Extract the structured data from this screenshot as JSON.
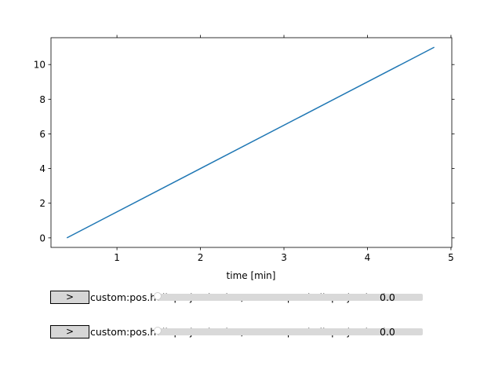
{
  "chart_data": {
    "type": "line",
    "title": "",
    "xlabel": "time [min]",
    "ylabel": "",
    "xlim": [
      0.21,
      5.01
    ],
    "ylim": [
      -0.55,
      11.55
    ],
    "xticks": [
      1,
      2,
      3,
      4,
      5
    ],
    "yticks": [
      0,
      2,
      4,
      6,
      8,
      10
    ],
    "xtick_labels": [
      "1",
      "2",
      "3",
      "4",
      "5"
    ],
    "ytick_labels": [
      "0",
      "2",
      "4",
      "6",
      "8",
      "10"
    ],
    "grid": false,
    "series": [
      {
        "x": [
          0.4,
          4.8
        ],
        "y": [
          0,
          11
        ],
        "color": "#1f77b4"
      }
    ]
  },
  "sliders": [
    {
      "button_label": ">",
      "label": "custom:pos.helioprojective.lat / custom:pos.helioprojective.lon",
      "value": "0.0",
      "position": 0
    },
    {
      "button_label": ">",
      "label": "custom:pos.helioprojective.lat / custom:pos.helioprojective.lon",
      "value": "0.0",
      "position": 0
    }
  ]
}
